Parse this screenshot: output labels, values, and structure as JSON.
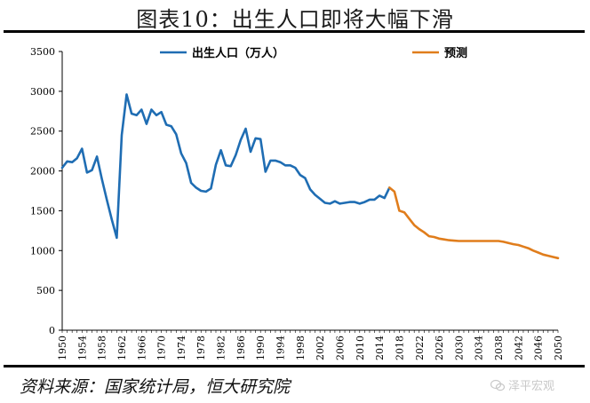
{
  "page": {
    "title": "图表10：出生人口即将大幅下滑",
    "source": "资料来源：国家统计局，恒大研究院",
    "watermark": "泽平宏观"
  },
  "colors": {
    "actual": "#1f6db3",
    "forecast": "#e07d1c",
    "axis": "#000000"
  },
  "chart_data": {
    "type": "line",
    "title": "图表10：出生人口即将大幅下滑",
    "xlabel": "",
    "ylabel": "",
    "xlim": [
      1950,
      2050
    ],
    "ylim": [
      0,
      3500
    ],
    "yticks": [
      0,
      500,
      1000,
      1500,
      2000,
      2500,
      3000,
      3500
    ],
    "xticks": [
      1950,
      1954,
      1958,
      1962,
      1966,
      1970,
      1974,
      1978,
      1982,
      1986,
      1990,
      1994,
      1998,
      2002,
      2006,
      2010,
      2014,
      2018,
      2022,
      2026,
      2030,
      2034,
      2038,
      2042,
      2046,
      2050
    ],
    "legend_position": "top",
    "series": [
      {
        "name": "出生人口（万人）",
        "color": "#1f6db3",
        "x": [
          1950,
          1951,
          1952,
          1953,
          1954,
          1955,
          1956,
          1957,
          1958,
          1959,
          1960,
          1961,
          1962,
          1963,
          1964,
          1965,
          1966,
          1967,
          1968,
          1969,
          1970,
          1971,
          1972,
          1973,
          1974,
          1975,
          1976,
          1977,
          1978,
          1979,
          1980,
          1981,
          1982,
          1983,
          1984,
          1985,
          1986,
          1987,
          1988,
          1989,
          1990,
          1991,
          1992,
          1993,
          1994,
          1995,
          1996,
          1997,
          1998,
          1999,
          2000,
          2001,
          2002,
          2003,
          2004,
          2005,
          2006,
          2007,
          2008,
          2009,
          2010,
          2011,
          2012,
          2013,
          2014,
          2015,
          2016
        ],
        "values": [
          2040,
          2120,
          2110,
          2160,
          2280,
          1980,
          2010,
          2180,
          1900,
          1640,
          1390,
          1160,
          2450,
          2960,
          2720,
          2700,
          2770,
          2590,
          2770,
          2700,
          2740,
          2580,
          2560,
          2460,
          2220,
          2100,
          1850,
          1790,
          1750,
          1740,
          1780,
          2080,
          2260,
          2070,
          2060,
          2200,
          2390,
          2530,
          2240,
          2410,
          2400,
          1990,
          2130,
          2130,
          2110,
          2070,
          2070,
          2040,
          1950,
          1910,
          1770,
          1700,
          1650,
          1600,
          1590,
          1620,
          1590,
          1600,
          1610,
          1610,
          1590,
          1610,
          1640,
          1640,
          1690,
          1660,
          1790
        ]
      },
      {
        "name": "预测",
        "color": "#e07d1c",
        "x": [
          2016,
          2017,
          2018,
          2019,
          2020,
          2021,
          2022,
          2023,
          2024,
          2025,
          2026,
          2027,
          2028,
          2029,
          2030,
          2032,
          2034,
          2036,
          2038,
          2039,
          2040,
          2041,
          2042,
          2043,
          2044,
          2045,
          2046,
          2047,
          2048,
          2049,
          2050
        ],
        "values": [
          1790,
          1740,
          1500,
          1480,
          1400,
          1320,
          1270,
          1230,
          1180,
          1170,
          1150,
          1140,
          1130,
          1125,
          1120,
          1120,
          1120,
          1120,
          1120,
          1110,
          1095,
          1080,
          1070,
          1050,
          1030,
          1000,
          975,
          950,
          935,
          920,
          905
        ]
      }
    ]
  }
}
